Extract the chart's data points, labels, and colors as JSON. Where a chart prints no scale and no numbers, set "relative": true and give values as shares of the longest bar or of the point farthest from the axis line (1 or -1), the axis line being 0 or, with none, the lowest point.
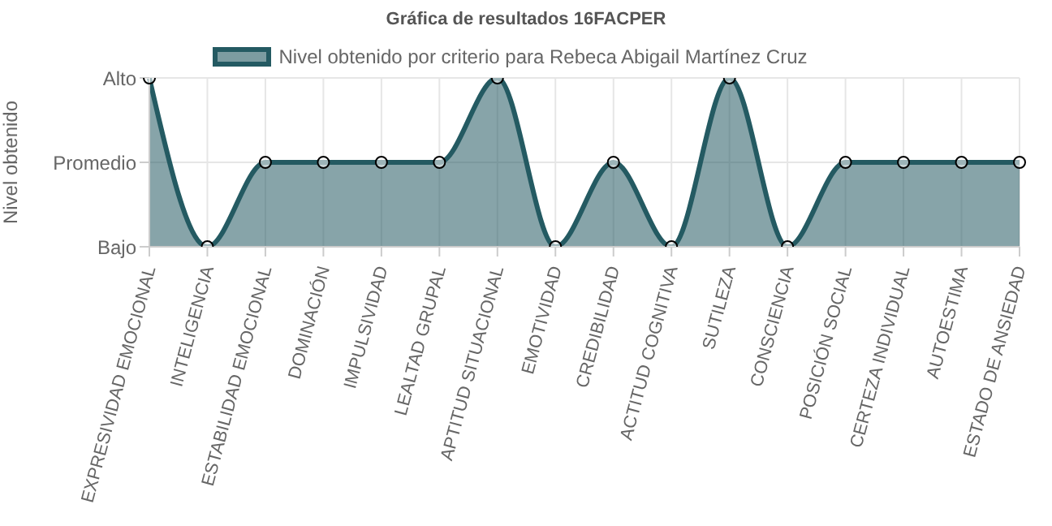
{
  "chart_data": {
    "type": "area",
    "title": "Gráfica de resultados 16FACPER",
    "ylabel": "Nivel obtenido",
    "categories": [
      "EXPRESIVIDAD EMOCIONAL",
      "INTELIGENCIA",
      "ESTABILIDAD EMOCIONAL",
      "DOMINACIÓN",
      "IMPULSIVIDAD",
      "LEALTAD GRUPAL",
      "APTITUD SITUACIONAL",
      "EMOTIVIDAD",
      "CREDIBILIDAD",
      "ACTITUD COGNITIVA",
      "SUTILEZA",
      "CONSCIENCIA",
      "POSICIÓN SOCIAL",
      "CERTEZA INDIVIDUAL",
      "AUTOESTIMA",
      "ESTADO DE ANSIEDAD"
    ],
    "series": [
      {
        "name": "Nivel obtenido por criterio para Rebeca Abigail Martínez Cruz",
        "color": "#245a62",
        "values": [
          1,
          0,
          0.5,
          0.5,
          0.5,
          0.5,
          1,
          0,
          0.5,
          0,
          1,
          0,
          0.5,
          0.5,
          0.5,
          0.5
        ]
      }
    ],
    "relative": true,
    "annotations": [
      "Bajo",
      "Promedio",
      "Alto"
    ],
    "grid": true,
    "legend": "top",
    "marker": "circle",
    "line_style": "solid"
  }
}
